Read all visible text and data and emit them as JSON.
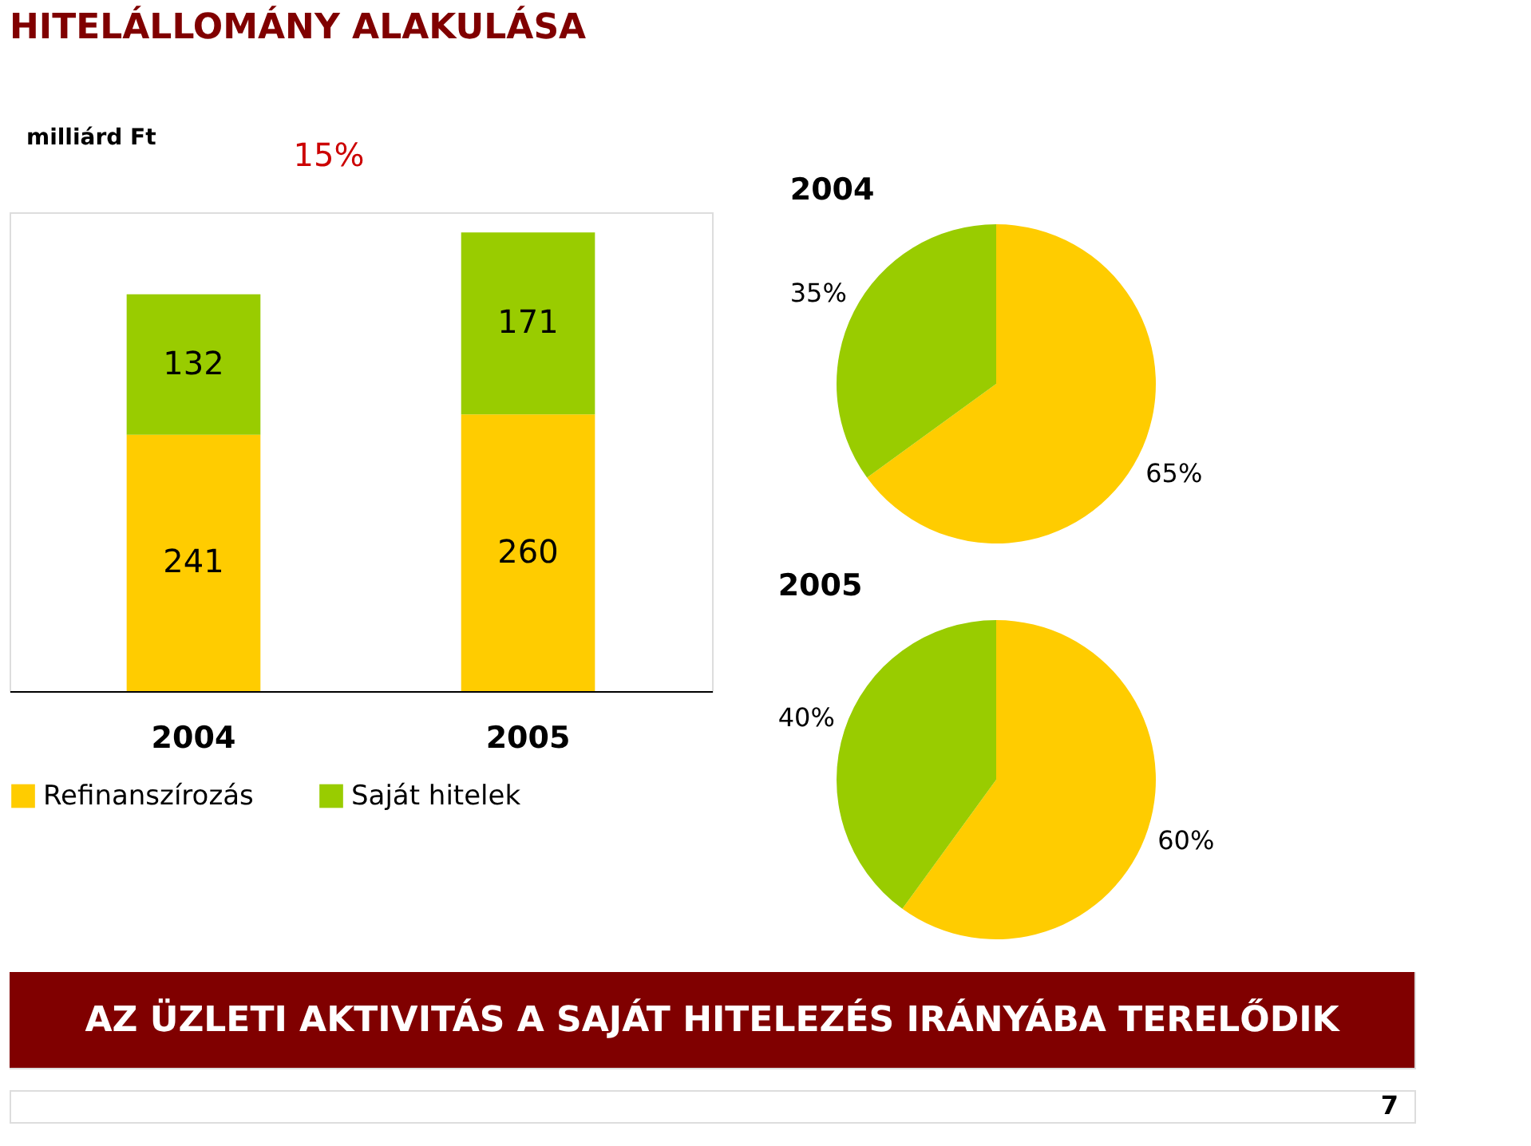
{
  "chart_data": [
    {
      "type": "bar",
      "title": "HITELÁLLOMÁNY ALAKULÁSA",
      "ylabel": "milliárd Ft",
      "categories": [
        "2004",
        "2005"
      ],
      "stacked": true,
      "data_labels": true,
      "legend": "bottom",
      "series": [
        {
          "name": "Refinanszírozás",
          "color": "#ffcc00",
          "values": [
            241,
            260
          ]
        },
        {
          "name": "Saját hitelek",
          "color": "#99cc00",
          "values": [
            132,
            171
          ]
        }
      ],
      "annotations": [
        "15%",
        "AZ ÜZLETI AKTIVITÁS A SAJÁT HITELEZÉS IRÁNYÁBA TERELŐDIK",
        "7"
      ]
    },
    {
      "type": "pie",
      "title": "2004",
      "categories": [
        null,
        null
      ],
      "values": [
        65,
        35
      ],
      "colors": [
        "#ffcc00",
        "#99cc00"
      ],
      "value_labels": [
        "65%",
        "35%"
      ]
    },
    {
      "type": "pie",
      "title": "2005",
      "categories": [
        null,
        null
      ],
      "values": [
        60,
        40
      ],
      "colors": [
        "#ffcc00",
        "#99cc00"
      ],
      "value_labels": [
        "60%",
        "40%"
      ]
    }
  ]
}
